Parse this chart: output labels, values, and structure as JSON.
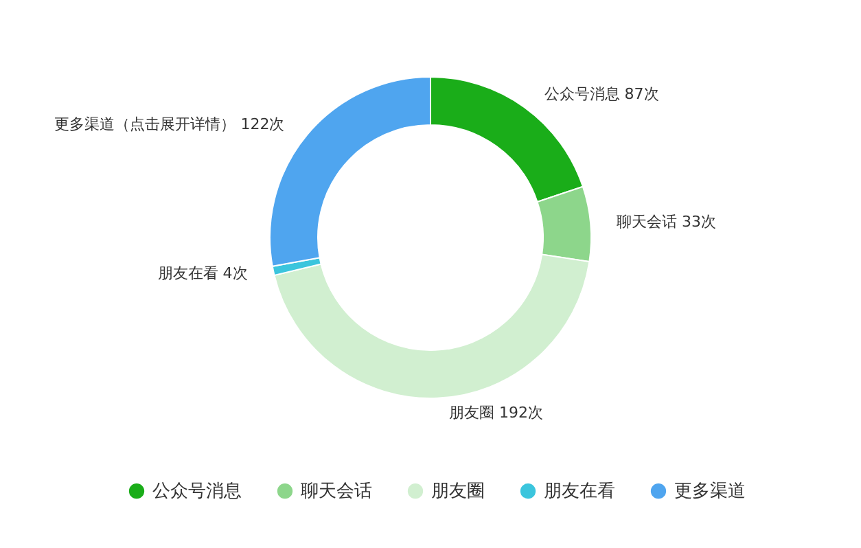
{
  "chart_data": {
    "type": "donut",
    "categories": [
      "公众号消息",
      "聊天会话",
      "朋友圈",
      "朋友在看",
      "更多渠道"
    ],
    "values": [
      87,
      33,
      192,
      4,
      122
    ],
    "colors": [
      "#1aad19",
      "#8dd68b",
      "#d1efd0",
      "#3bc5dd",
      "#4fa5ef"
    ],
    "value_labels": [
      "公众号消息 87次",
      "聊天会话 33次",
      "朋友圈 192次",
      "朋友在看 4次",
      "更多渠道（点击展开详情） 122次"
    ],
    "legend": "bottom"
  }
}
